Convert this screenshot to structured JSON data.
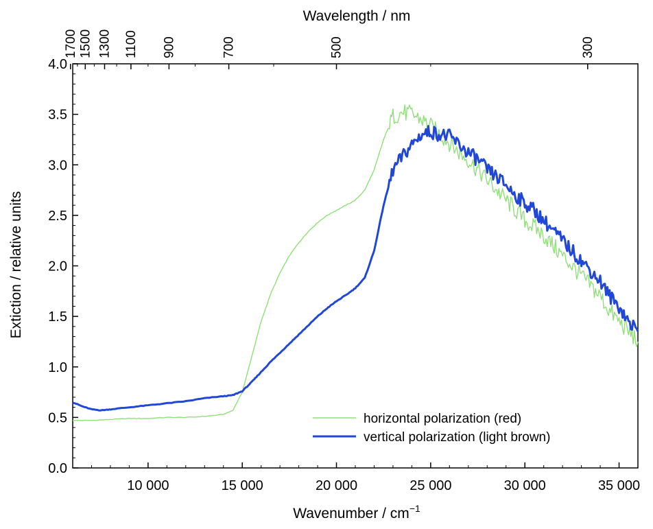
{
  "chart_data": {
    "type": "line",
    "xlabel": "Wavenumber / cm",
    "xlabel_superscript": "−1",
    "ylabel": "Extiction / relative units",
    "top_axis_label": "Wavelength / nm",
    "xlim": [
      6000,
      36000
    ],
    "ylim": [
      0.0,
      4.0
    ],
    "x_ticks": [
      10000,
      15000,
      20000,
      25000,
      30000,
      35000
    ],
    "x_tick_labels": [
      "10 000",
      "15 000",
      "20 000",
      "25 000",
      "30 000",
      "35 000"
    ],
    "y_ticks": [
      0.0,
      0.5,
      1.0,
      1.5,
      2.0,
      2.5,
      3.0,
      3.5,
      4.0
    ],
    "y_tick_labels": [
      "0.0",
      "0.5",
      "1.0",
      "1.5",
      "2.0",
      "2.5",
      "3.0",
      "3.5",
      "4.0"
    ],
    "top_ticks_nm": [
      1700,
      1500,
      1300,
      1100,
      900,
      700,
      500,
      300
    ],
    "top_tick_labels": [
      "1700",
      "1500",
      "1300",
      "1100",
      "900",
      "700",
      "500",
      "300"
    ],
    "legend_position": "bottom-right",
    "grid": false,
    "series": [
      {
        "name": "horizontal polarization (red)",
        "color": "#90e07a",
        "x": [
          6000,
          7000,
          8000,
          9000,
          10000,
          11000,
          12000,
          13000,
          14000,
          14500,
          15000,
          15500,
          16000,
          16500,
          17000,
          17500,
          18000,
          18500,
          19000,
          19500,
          20000,
          20500,
          21000,
          21500,
          22000,
          22500,
          23000,
          23500,
          24000,
          24500,
          25000,
          25500,
          26000,
          26500,
          27000,
          27500,
          28000,
          28500,
          29000,
          29500,
          30000,
          30500,
          31000,
          31500,
          32000,
          32500,
          33000,
          33500,
          34000,
          34500,
          35000,
          35500,
          36000
        ],
        "y": [
          0.47,
          0.47,
          0.48,
          0.49,
          0.49,
          0.5,
          0.5,
          0.51,
          0.53,
          0.57,
          0.75,
          1.1,
          1.45,
          1.72,
          1.93,
          2.1,
          2.23,
          2.34,
          2.43,
          2.5,
          2.55,
          2.6,
          2.65,
          2.75,
          2.95,
          3.25,
          3.48,
          3.52,
          3.5,
          3.45,
          3.38,
          3.3,
          3.22,
          3.12,
          3.05,
          2.95,
          2.85,
          2.75,
          2.65,
          2.55,
          2.45,
          2.38,
          2.3,
          2.2,
          2.1,
          2.0,
          1.9,
          1.8,
          1.7,
          1.55,
          1.45,
          1.35,
          1.25
        ]
      },
      {
        "name": "vertical polarization (light brown)",
        "color": "#2147d6",
        "x": [
          6000,
          6500,
          7000,
          7500,
          8000,
          9000,
          10000,
          11000,
          12000,
          13000,
          14000,
          14500,
          15000,
          15500,
          16000,
          16500,
          17000,
          17500,
          18000,
          18500,
          19000,
          19500,
          20000,
          20500,
          21000,
          21500,
          22000,
          22500,
          23000,
          23500,
          24000,
          24500,
          25000,
          25500,
          26000,
          26500,
          27000,
          27500,
          28000,
          28500,
          29000,
          29500,
          30000,
          30500,
          31000,
          31500,
          32000,
          32500,
          33000,
          33500,
          34000,
          34500,
          35000,
          35500,
          36000
        ],
        "y": [
          0.65,
          0.61,
          0.58,
          0.57,
          0.58,
          0.6,
          0.62,
          0.64,
          0.66,
          0.69,
          0.71,
          0.72,
          0.76,
          0.85,
          0.95,
          1.05,
          1.14,
          1.23,
          1.32,
          1.41,
          1.5,
          1.58,
          1.65,
          1.71,
          1.78,
          1.88,
          2.15,
          2.6,
          2.95,
          3.08,
          3.2,
          3.3,
          3.33,
          3.3,
          3.28,
          3.2,
          3.12,
          3.05,
          2.95,
          2.88,
          2.8,
          2.7,
          2.62,
          2.55,
          2.45,
          2.35,
          2.25,
          2.15,
          2.05,
          1.95,
          1.85,
          1.7,
          1.6,
          1.45,
          1.35
        ]
      }
    ]
  }
}
